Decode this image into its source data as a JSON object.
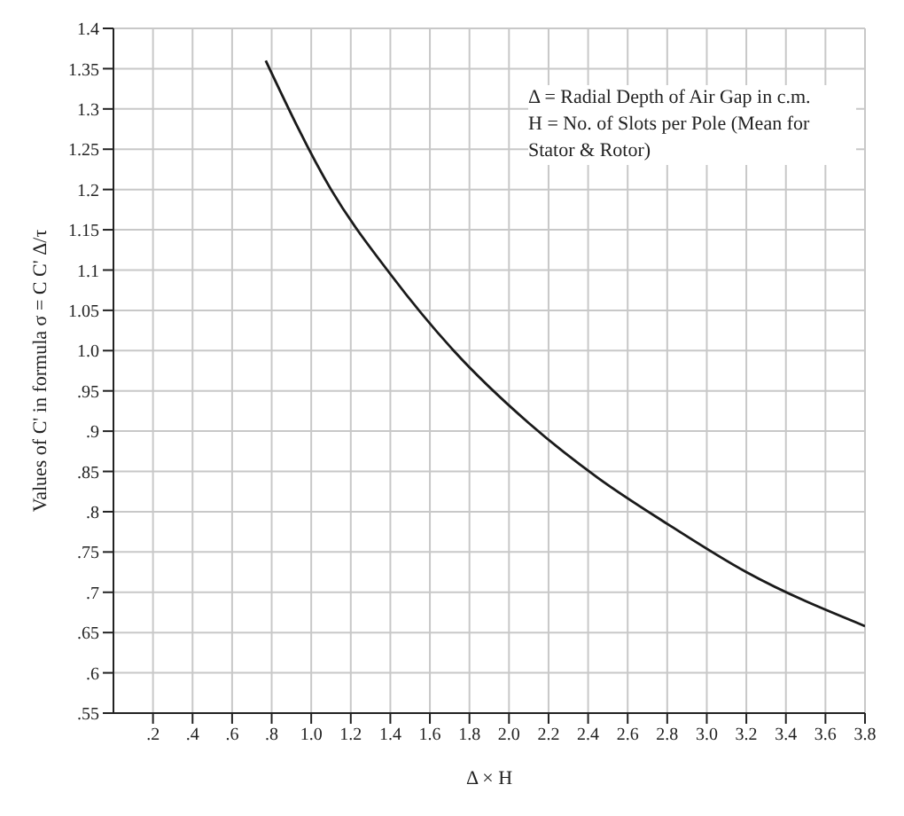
{
  "chart_data": {
    "type": "line",
    "xlabel": "Δ × H",
    "ylabel": "Values of C' in formula σ = C C' Δ/τ",
    "annotations": [
      "Δ = Radial Depth of Air Gap in c.m.",
      "H = No. of Slots per Pole (Mean for Stator & Rotor)"
    ],
    "series": [
      {
        "color": "#1a1a1a",
        "x": [
          0.77,
          1.1,
          1.4,
          1.72,
          2.1,
          2.45,
          2.8,
          3.2,
          3.8
        ],
        "values": [
          1.36,
          1.2,
          1.095,
          1.0,
          0.91,
          0.842,
          0.785,
          0.725,
          0.658
        ]
      }
    ],
    "xlim": [
      0,
      3.8
    ],
    "xticks": [
      {
        "value": 0.2,
        "label": ".2"
      },
      {
        "value": 0.4,
        "label": ".4"
      },
      {
        "value": 0.6,
        "label": ".6"
      },
      {
        "value": 0.8,
        "label": ".8"
      },
      {
        "value": 1,
        "label": "1.0"
      },
      1.2,
      1.4,
      1.6,
      1.8,
      {
        "value": 2,
        "label": "2.0"
      },
      2.2,
      2.4,
      2.6,
      2.8,
      {
        "value": 3,
        "label": "3.0"
      },
      3.2,
      3.4,
      3.6,
      3.8
    ],
    "ylim": [
      0.55,
      1.4
    ],
    "yticks": [
      {
        "value": 0.55,
        "label": ".55"
      },
      {
        "value": 0.6,
        "label": ".6"
      },
      {
        "value": 0.65,
        "label": ".65"
      },
      {
        "value": 0.7,
        "label": ".7"
      },
      {
        "value": 0.75,
        "label": ".75"
      },
      {
        "value": 0.8,
        "label": ".8"
      },
      {
        "value": 0.85,
        "label": ".85"
      },
      {
        "value": 0.9,
        "label": ".9"
      },
      {
        "value": 0.95,
        "label": ".95"
      },
      {
        "value": 1,
        "label": "1.0"
      },
      1.05,
      1.1,
      1.15,
      1.2,
      1.25,
      1.3,
      1.35,
      1.4
    ],
    "grid": true,
    "marker": "none",
    "line_style": "solid"
  }
}
